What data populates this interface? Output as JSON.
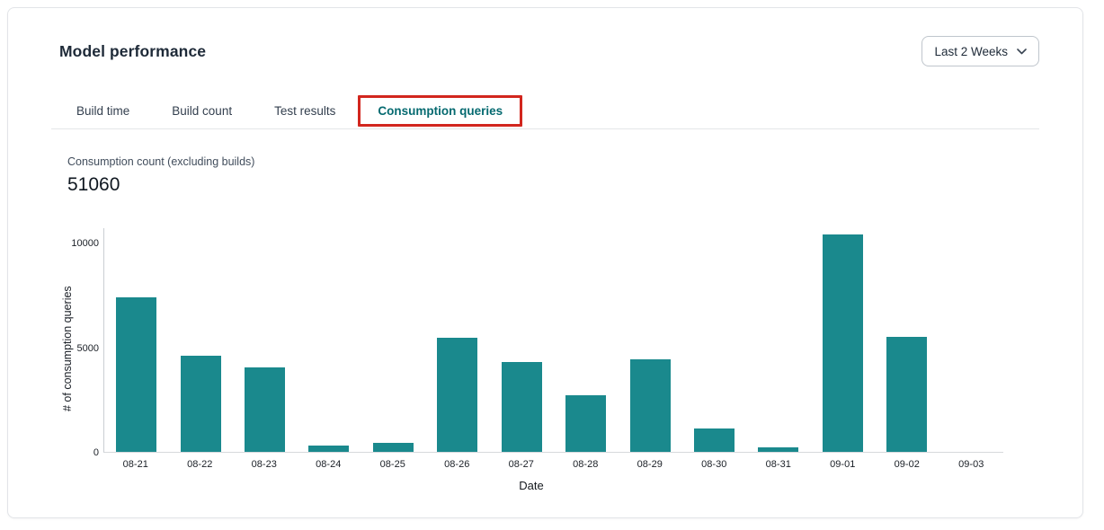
{
  "header": {
    "title": "Model performance",
    "range_selector": {
      "value": "Last 2 Weeks",
      "icon": "chevron-down-icon"
    }
  },
  "tabs": [
    {
      "label": "Build time",
      "active": false
    },
    {
      "label": "Build count",
      "active": false
    },
    {
      "label": "Test results",
      "active": false
    },
    {
      "label": "Consumption queries",
      "active": true,
      "annotated_with_red_box": true
    }
  ],
  "stat": {
    "label": "Consumption count (excluding builds)",
    "value": "51060"
  },
  "chart_data": {
    "type": "bar",
    "title": "",
    "categories": [
      "08-21",
      "08-22",
      "08-23",
      "08-24",
      "08-25",
      "08-26",
      "08-27",
      "08-28",
      "08-29",
      "08-30",
      "08-31",
      "09-01",
      "09-02",
      "09-03"
    ],
    "values": [
      7400,
      4600,
      4050,
      320,
      450,
      5480,
      4330,
      2700,
      4440,
      1130,
      210,
      10450,
      5500,
      0
    ],
    "xlabel": "Date",
    "ylabel": "# of consumption queries",
    "yticks": [
      0,
      5000,
      10000
    ],
    "ylim": [
      0,
      10730
    ],
    "grid": false,
    "legend": false,
    "bar_color": "#1a898d"
  },
  "colors": {
    "bar_teal": "#1a898d",
    "active_tab_teal": "#056a70",
    "annotation_red": "#d2261e",
    "card_border": "#e2e4e8"
  }
}
